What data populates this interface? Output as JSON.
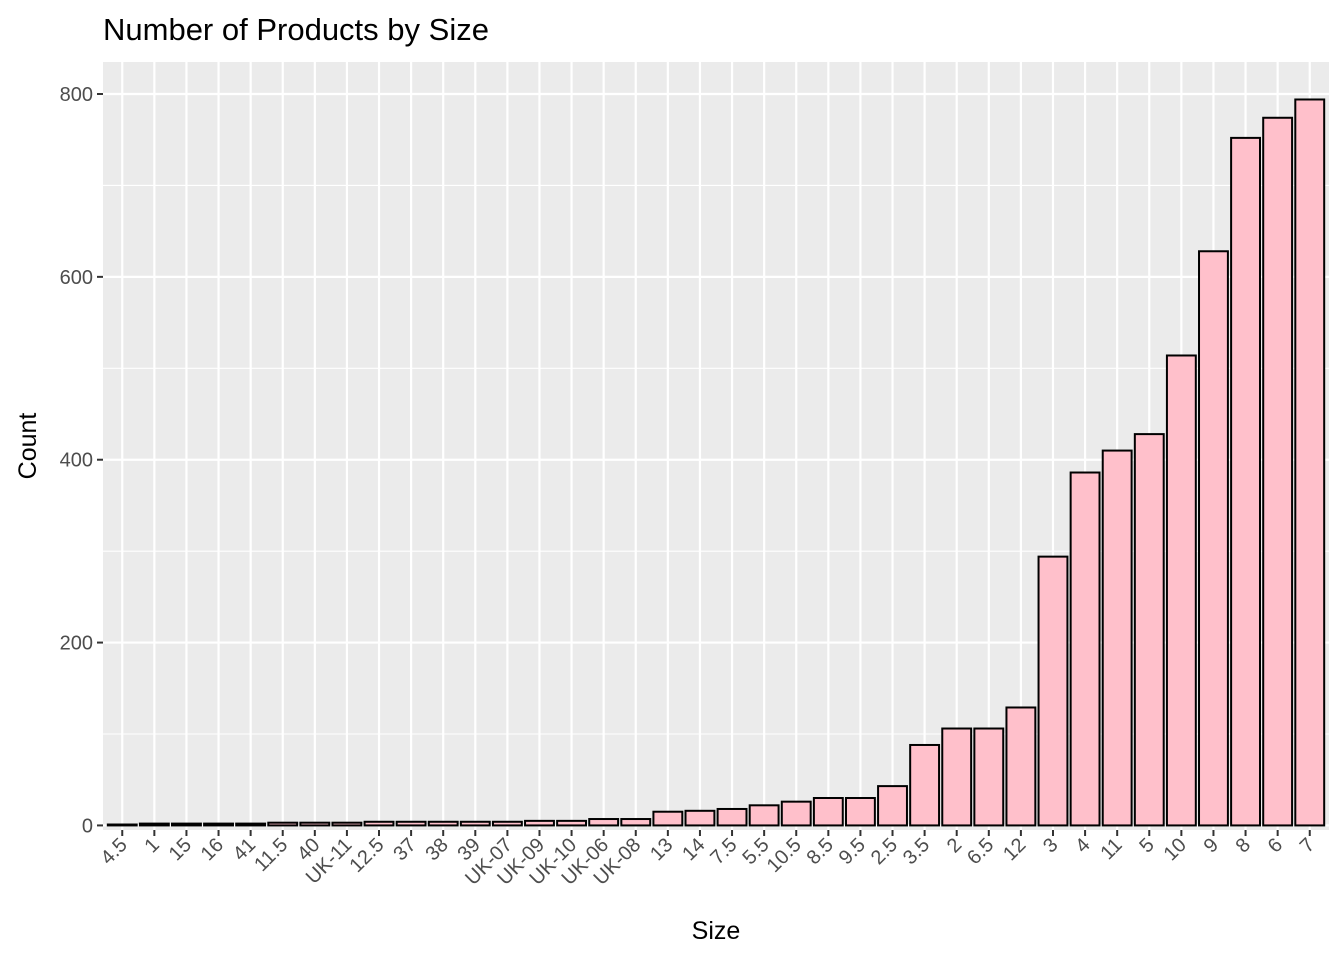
{
  "chart_data": {
    "type": "bar",
    "title": "Number of Products by Size",
    "xlabel": "Size",
    "ylabel": "Count",
    "categories": [
      "4.5",
      "1",
      "15",
      "16",
      "41",
      "11.5",
      "40",
      "UK-11",
      "12.5",
      "37",
      "38",
      "39",
      "UK-07",
      "UK-09",
      "UK-10",
      "UK-06",
      "UK-08",
      "13",
      "14",
      "7.5",
      "5.5",
      "10.5",
      "8.5",
      "9.5",
      "2.5",
      "3.5",
      "2",
      "6.5",
      "12",
      "3",
      "4",
      "11",
      "5",
      "10",
      "9",
      "8",
      "6",
      "7"
    ],
    "values": [
      1,
      2,
      2,
      2,
      2,
      3,
      3,
      3,
      4,
      4,
      4,
      4,
      4,
      5,
      5,
      7,
      7,
      15,
      16,
      18,
      22,
      26,
      30,
      30,
      43,
      88,
      106,
      106,
      129,
      294,
      386,
      410,
      428,
      514,
      628,
      752,
      774,
      794
    ],
    "ylim": [
      -5,
      835
    ],
    "yticks": [
      0,
      200,
      400,
      600,
      800
    ],
    "grid": true,
    "bar_fill": "#ffc0cb",
    "bar_stroke": "#000000",
    "panel_background": "#ebebeb",
    "grid_color": "#ffffff"
  }
}
